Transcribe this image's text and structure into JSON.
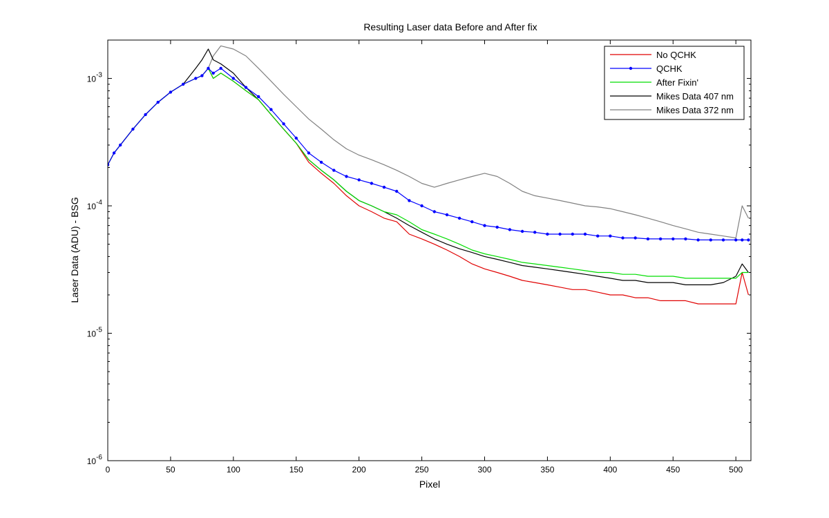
{
  "chart_data": {
    "type": "line",
    "title": "Resulting Laser data Before and After fix",
    "xlabel": "Pixel",
    "ylabel": "Laser Data (ADU) - BSG",
    "xlim": [
      0,
      512
    ],
    "ylim": [
      1e-06,
      0.002
    ],
    "yscale": "log",
    "grid": false,
    "legend_position": "top-right",
    "xticks": [
      0,
      50,
      100,
      150,
      200,
      250,
      300,
      350,
      400,
      450,
      500
    ],
    "yticks": [
      {
        "value": 1e-06,
        "base": "10",
        "exp": "-6"
      },
      {
        "value": 1e-05,
        "base": "10",
        "exp": "-5"
      },
      {
        "value": 0.0001,
        "base": "10",
        "exp": "-4"
      },
      {
        "value": 0.001,
        "base": "10",
        "exp": "-3"
      }
    ],
    "series": [
      {
        "name": "No QCHK",
        "color": "#e00000",
        "marker": "none",
        "x": [
          0,
          5,
          10,
          20,
          30,
          40,
          50,
          60,
          70,
          75,
          80,
          84,
          90,
          100,
          110,
          120,
          130,
          140,
          150,
          160,
          170,
          180,
          190,
          200,
          210,
          220,
          230,
          240,
          250,
          260,
          270,
          280,
          290,
          300,
          310,
          320,
          330,
          340,
          350,
          360,
          370,
          380,
          390,
          400,
          410,
          420,
          430,
          440,
          450,
          460,
          470,
          480,
          490,
          500,
          505,
          510
        ],
        "y": [
          0.00021,
          0.00026,
          0.0003,
          0.0004,
          0.00052,
          0.00065,
          0.00078,
          0.0009,
          0.001,
          0.00105,
          0.0012,
          0.001,
          0.0011,
          0.00095,
          0.0008,
          0.00068,
          0.00052,
          0.0004,
          0.00031,
          0.00022,
          0.00018,
          0.00015,
          0.00012,
          0.0001,
          9e-05,
          8e-05,
          7.5e-05,
          6e-05,
          5.5e-05,
          5e-05,
          4.5e-05,
          4e-05,
          3.5e-05,
          3.2e-05,
          3e-05,
          2.8e-05,
          2.6e-05,
          2.5e-05,
          2.4e-05,
          2.3e-05,
          2.2e-05,
          2.2e-05,
          2.1e-05,
          2e-05,
          2e-05,
          1.9e-05,
          1.9e-05,
          1.8e-05,
          1.8e-05,
          1.8e-05,
          1.7e-05,
          1.7e-05,
          1.7e-05,
          1.7e-05,
          3e-05,
          2e-05
        ]
      },
      {
        "name": "QCHK",
        "color": "#0000ff",
        "marker": "dot",
        "x": [
          0,
          5,
          10,
          20,
          30,
          40,
          50,
          60,
          70,
          75,
          80,
          84,
          90,
          100,
          110,
          120,
          130,
          140,
          150,
          160,
          170,
          180,
          190,
          200,
          210,
          220,
          230,
          240,
          250,
          260,
          270,
          280,
          290,
          300,
          310,
          320,
          330,
          340,
          350,
          360,
          370,
          380,
          390,
          400,
          410,
          420,
          430,
          440,
          450,
          460,
          470,
          480,
          490,
          500,
          505,
          510
        ],
        "y": [
          0.00021,
          0.00026,
          0.0003,
          0.0004,
          0.00052,
          0.00065,
          0.00078,
          0.0009,
          0.001,
          0.00105,
          0.0012,
          0.0011,
          0.0012,
          0.001,
          0.00085,
          0.00072,
          0.00057,
          0.00044,
          0.00034,
          0.00026,
          0.00022,
          0.00019,
          0.00017,
          0.00016,
          0.00015,
          0.00014,
          0.00013,
          0.00011,
          0.0001,
          9e-05,
          8.5e-05,
          8e-05,
          7.5e-05,
          7e-05,
          6.8e-05,
          6.5e-05,
          6.3e-05,
          6.2e-05,
          6e-05,
          6e-05,
          6e-05,
          6e-05,
          5.8e-05,
          5.8e-05,
          5.6e-05,
          5.6e-05,
          5.5e-05,
          5.5e-05,
          5.5e-05,
          5.5e-05,
          5.4e-05,
          5.4e-05,
          5.4e-05,
          5.4e-05,
          5.4e-05,
          5.4e-05
        ]
      },
      {
        "name": "After Fixin'",
        "color": "#00dd00",
        "marker": "none",
        "x": [
          0,
          5,
          10,
          20,
          30,
          40,
          50,
          60,
          70,
          75,
          80,
          84,
          90,
          100,
          110,
          120,
          130,
          140,
          150,
          160,
          170,
          180,
          190,
          200,
          210,
          220,
          230,
          240,
          250,
          260,
          270,
          280,
          290,
          300,
          310,
          320,
          330,
          340,
          350,
          360,
          370,
          380,
          390,
          400,
          410,
          420,
          430,
          440,
          450,
          460,
          470,
          480,
          490,
          500,
          505,
          510
        ],
        "y": [
          0.00021,
          0.00026,
          0.0003,
          0.0004,
          0.00052,
          0.00065,
          0.00078,
          0.0009,
          0.001,
          0.00105,
          0.0012,
          0.001,
          0.0011,
          0.00095,
          0.0008,
          0.00068,
          0.00052,
          0.0004,
          0.00031,
          0.00023,
          0.00019,
          0.00016,
          0.00013,
          0.00011,
          0.0001,
          9e-05,
          8.5e-05,
          7.5e-05,
          6.5e-05,
          6e-05,
          5.5e-05,
          5e-05,
          4.5e-05,
          4.2e-05,
          4e-05,
          3.8e-05,
          3.6e-05,
          3.5e-05,
          3.4e-05,
          3.3e-05,
          3.2e-05,
          3.1e-05,
          3e-05,
          3e-05,
          2.9e-05,
          2.9e-05,
          2.8e-05,
          2.8e-05,
          2.8e-05,
          2.7e-05,
          2.7e-05,
          2.7e-05,
          2.7e-05,
          2.7e-05,
          3e-05,
          3e-05
        ]
      },
      {
        "name": "Mikes Data 407 nm",
        "color": "#000000",
        "marker": "none",
        "x": [
          0,
          5,
          10,
          20,
          30,
          40,
          50,
          60,
          70,
          75,
          80,
          84,
          90,
          100,
          110,
          120,
          130,
          140,
          150,
          160,
          170,
          180,
          190,
          200,
          210,
          220,
          230,
          240,
          250,
          260,
          270,
          280,
          290,
          300,
          310,
          320,
          330,
          340,
          350,
          360,
          370,
          380,
          390,
          400,
          410,
          420,
          430,
          440,
          450,
          460,
          470,
          480,
          490,
          500,
          505,
          510
        ],
        "y": [
          0.00021,
          0.00026,
          0.0003,
          0.0004,
          0.00052,
          0.00065,
          0.00078,
          0.0009,
          0.0012,
          0.0014,
          0.0017,
          0.0014,
          0.0013,
          0.0011,
          0.00085,
          0.00068,
          0.00052,
          0.0004,
          0.00031,
          0.00023,
          0.00019,
          0.00016,
          0.00013,
          0.00011,
          0.0001,
          9e-05,
          8e-05,
          7e-05,
          6.2e-05,
          5.5e-05,
          5e-05,
          4.6e-05,
          4.3e-05,
          4e-05,
          3.8e-05,
          3.6e-05,
          3.4e-05,
          3.3e-05,
          3.2e-05,
          3.1e-05,
          3e-05,
          2.9e-05,
          2.8e-05,
          2.7e-05,
          2.6e-05,
          2.6e-05,
          2.5e-05,
          2.5e-05,
          2.5e-05,
          2.4e-05,
          2.4e-05,
          2.4e-05,
          2.5e-05,
          2.8e-05,
          3.5e-05,
          3e-05
        ]
      },
      {
        "name": "Mikes Data 372 nm",
        "color": "#808080",
        "marker": "none",
        "x": [
          0,
          5,
          10,
          20,
          30,
          40,
          50,
          60,
          70,
          75,
          80,
          84,
          90,
          100,
          110,
          120,
          130,
          140,
          150,
          160,
          170,
          180,
          190,
          200,
          210,
          220,
          230,
          240,
          250,
          260,
          270,
          280,
          290,
          300,
          310,
          320,
          330,
          340,
          350,
          360,
          370,
          380,
          390,
          400,
          410,
          420,
          430,
          440,
          450,
          460,
          470,
          480,
          490,
          500,
          505,
          510
        ],
        "y": [
          0.00021,
          0.00026,
          0.0003,
          0.0004,
          0.00052,
          0.00065,
          0.00078,
          0.0009,
          0.001,
          0.00105,
          0.0012,
          0.0015,
          0.0018,
          0.0017,
          0.0015,
          0.0012,
          0.00095,
          0.00075,
          0.0006,
          0.00048,
          0.0004,
          0.00033,
          0.00028,
          0.00025,
          0.00023,
          0.00021,
          0.00019,
          0.00017,
          0.00015,
          0.00014,
          0.00015,
          0.00016,
          0.00017,
          0.00018,
          0.00017,
          0.00015,
          0.00013,
          0.00012,
          0.000115,
          0.00011,
          0.000105,
          0.0001,
          9.8e-05,
          9.5e-05,
          9e-05,
          8.5e-05,
          8e-05,
          7.5e-05,
          7e-05,
          6.6e-05,
          6.2e-05,
          6e-05,
          5.8e-05,
          5.6e-05,
          0.0001,
          8e-05
        ]
      }
    ]
  }
}
